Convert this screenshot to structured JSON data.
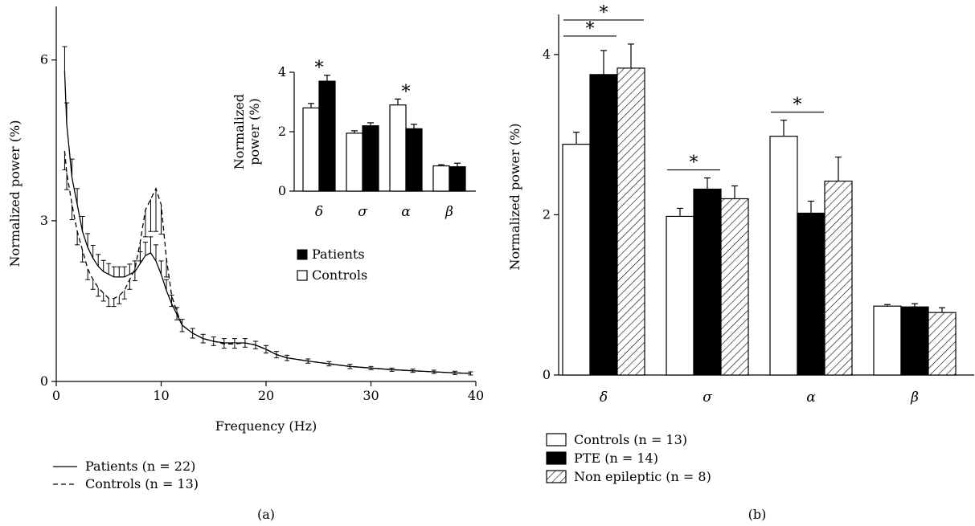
{
  "chart_data": [
    {
      "panel": "(a)",
      "type": "line",
      "xlabel": "Frequency (Hz)",
      "ylabel": "Normalized power (%)",
      "xlim": [
        0,
        40
      ],
      "ylim": [
        0,
        7
      ],
      "xticks": [
        "0",
        "10",
        "20",
        "30",
        "40"
      ],
      "yticks": [
        "0",
        "3",
        "6"
      ],
      "grid": false,
      "legend": {
        "placement": "bottom-left",
        "entries": [
          {
            "label": "Patients (n = 22)",
            "style": "solid"
          },
          {
            "label": "Controls (n = 13)",
            "style": "dashed"
          }
        ]
      },
      "series": [
        {
          "name": "Patients (n = 22)",
          "style": "solid",
          "x": [
            0.8,
            1,
            1.5,
            2,
            2.5,
            3,
            3.5,
            4,
            4.5,
            5,
            5.5,
            6,
            6.5,
            7,
            7.5,
            8,
            8.5,
            9,
            9.5,
            10,
            10.5,
            11,
            11.5,
            12,
            13,
            14,
            15,
            16,
            17,
            18,
            19,
            20,
            21,
            22,
            24,
            26,
            28,
            30,
            32,
            34,
            36,
            38,
            39.5
          ],
          "y": [
            5.8,
            4.8,
            3.8,
            3.3,
            2.8,
            2.5,
            2.3,
            2.15,
            2.05,
            2.0,
            1.95,
            1.95,
            1.95,
            2.0,
            2.05,
            2.2,
            2.35,
            2.4,
            2.25,
            2.0,
            1.7,
            1.45,
            1.25,
            1.05,
            0.9,
            0.8,
            0.75,
            0.72,
            0.72,
            0.72,
            0.68,
            0.6,
            0.5,
            0.44,
            0.38,
            0.33,
            0.28,
            0.25,
            0.22,
            0.2,
            0.18,
            0.16,
            0.15
          ],
          "error": [
            0.45,
            0.4,
            0.35,
            0.3,
            0.28,
            0.26,
            0.24,
            0.22,
            0.21,
            0.2,
            0.19,
            0.19,
            0.19,
            0.19,
            0.2,
            0.22,
            0.25,
            0.3,
            0.3,
            0.25,
            0.2,
            0.16,
            0.13,
            0.11,
            0.09,
            0.08,
            0.08,
            0.08,
            0.08,
            0.08,
            0.07,
            0.07,
            0.06,
            0.05,
            0.04,
            0.04,
            0.04,
            0.03,
            0.03,
            0.03,
            0.03,
            0.03,
            0.03
          ]
        },
        {
          "name": "Controls (n = 13)",
          "style": "dashed",
          "x": [
            0.8,
            1,
            1.5,
            2,
            2.5,
            3,
            3.5,
            4,
            4.5,
            5,
            5.5,
            6,
            6.5,
            7,
            7.5,
            8,
            8.5,
            9,
            9.5,
            10,
            10.5,
            11,
            11.5,
            12,
            13,
            14,
            15,
            16,
            17,
            18,
            19,
            20,
            21,
            22,
            24,
            26,
            28,
            30,
            32,
            34,
            36,
            38,
            39.5
          ],
          "y": [
            4.3,
            3.9,
            3.3,
            2.8,
            2.45,
            2.1,
            1.9,
            1.75,
            1.65,
            1.55,
            1.55,
            1.6,
            1.7,
            1.9,
            2.1,
            2.6,
            3.2,
            3.4,
            3.6,
            3.3,
            2.3,
            1.6,
            1.3,
            1.05,
            0.9,
            0.8,
            0.75,
            0.7,
            0.7,
            0.72,
            0.68,
            0.6,
            0.5,
            0.44,
            0.38,
            0.33,
            0.28,
            0.25,
            0.22,
            0.2,
            0.18,
            0.16,
            0.15
          ],
          "error": [
            0.35,
            0.32,
            0.28,
            0.25,
            0.22,
            0.2,
            0.18,
            0.16,
            0.15,
            0.15,
            0.15,
            0.15,
            0.16,
            0.18,
            0.22,
            0.35,
            0.5,
            0.6,
            0.8,
            0.55,
            0.35,
            0.2,
            0.15,
            0.12,
            0.09,
            0.08,
            0.08,
            0.08,
            0.08,
            0.08,
            0.07,
            0.07,
            0.06,
            0.05,
            0.04,
            0.04,
            0.04,
            0.03,
            0.03,
            0.03,
            0.03,
            0.03,
            0.03
          ]
        }
      ]
    },
    {
      "panel": "(a) inset",
      "type": "bar",
      "ylabel": "Normalized power (%)",
      "ylim": [
        0,
        4
      ],
      "yticks": [
        "0",
        "2",
        "4"
      ],
      "categories": [
        "δ",
        "σ",
        "α",
        "β"
      ],
      "legend": {
        "placement": "right",
        "entries": [
          {
            "label": "Patients",
            "fill": "black"
          },
          {
            "label": "Controls",
            "fill": "white"
          }
        ]
      },
      "series": [
        {
          "name": "Controls",
          "fill": "white",
          "values": [
            2.8,
            1.95,
            2.9,
            0.85
          ],
          "error": [
            0.15,
            0.08,
            0.2,
            0.04
          ]
        },
        {
          "name": "Patients",
          "fill": "black",
          "values": [
            3.7,
            2.2,
            2.1,
            0.82
          ],
          "error": [
            0.2,
            0.1,
            0.15,
            0.12
          ]
        }
      ],
      "annotations": [
        {
          "text": "*",
          "category": "δ"
        },
        {
          "text": "*",
          "category": "α"
        }
      ]
    },
    {
      "panel": "(b)",
      "type": "bar",
      "ylabel": "Normalized power (%)",
      "ylim": [
        0,
        4.5
      ],
      "yticks": [
        "0",
        "2",
        "4"
      ],
      "categories": [
        "δ",
        "σ",
        "α",
        "β"
      ],
      "legend": {
        "placement": "bottom-left",
        "entries": [
          {
            "label": "Controls (n = 13)",
            "fill": "white"
          },
          {
            "label": "PTE (n = 14)",
            "fill": "black"
          },
          {
            "label": "Non epileptic (n = 8)",
            "fill": "hatched"
          }
        ]
      },
      "series": [
        {
          "name": "Controls (n = 13)",
          "fill": "white",
          "values": [
            2.88,
            1.98,
            2.98,
            0.86
          ],
          "error": [
            0.15,
            0.1,
            0.2,
            0.02
          ]
        },
        {
          "name": "PTE (n = 14)",
          "fill": "black",
          "values": [
            3.75,
            2.32,
            2.02,
            0.85
          ],
          "error": [
            0.3,
            0.14,
            0.15,
            0.04
          ]
        },
        {
          "name": "Non epileptic (n = 8)",
          "fill": "hatched",
          "values": [
            3.83,
            2.2,
            2.42,
            0.78
          ],
          "error": [
            0.3,
            0.16,
            0.3,
            0.06
          ]
        }
      ],
      "annotations": [
        {
          "text": "*",
          "from": "Controls (n = 13)",
          "to": "PTE (n = 14)",
          "category": "δ",
          "level": 1
        },
        {
          "text": "*",
          "from": "Controls (n = 13)",
          "to": "Non epileptic (n = 8)",
          "category": "δ",
          "level": 2
        },
        {
          "text": "*",
          "from": "Controls (n = 13)",
          "to": "PTE (n = 14)",
          "category": "σ",
          "level": 1
        },
        {
          "text": "*",
          "from": "Controls (n = 13)",
          "to": "PTE (n = 14)",
          "category": "α",
          "level": 1
        }
      ]
    }
  ],
  "labels": {
    "panel_a": "(a)",
    "panel_b": "(b)"
  }
}
